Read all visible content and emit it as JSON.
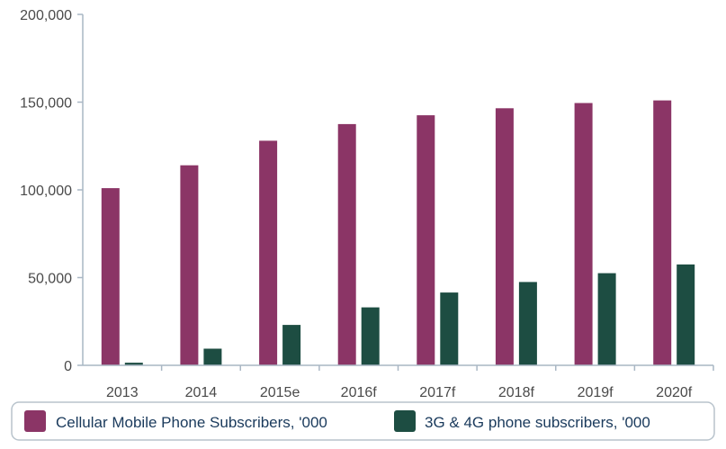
{
  "chart_data": {
    "type": "bar",
    "categories": [
      "2013",
      "2014",
      "2015e",
      "2016f",
      "2017f",
      "2018f",
      "2019f",
      "2020f"
    ],
    "series": [
      {
        "name": "Cellular Mobile Phone Subscribers, '000",
        "color": "#8b3566",
        "values": [
          101000,
          114000,
          128000,
          137500,
          142500,
          146500,
          149500,
          151000
        ]
      },
      {
        "name": "3G & 4G phone subscribers, '000",
        "color": "#1d4d42",
        "values": [
          1500,
          9500,
          23000,
          33000,
          41500,
          47500,
          52500,
          57500
        ]
      }
    ],
    "ylim": [
      0,
      200000
    ],
    "yticks": [
      {
        "value": 0,
        "label": "0"
      },
      {
        "value": 50000,
        "label": "50,000"
      },
      {
        "value": 100000,
        "label": "100,000"
      },
      {
        "value": 150000,
        "label": "150,000"
      },
      {
        "value": 200000,
        "label": "200,000"
      }
    ],
    "xlabel": "",
    "ylabel": "",
    "grid": false,
    "legend_position": "bottom"
  }
}
